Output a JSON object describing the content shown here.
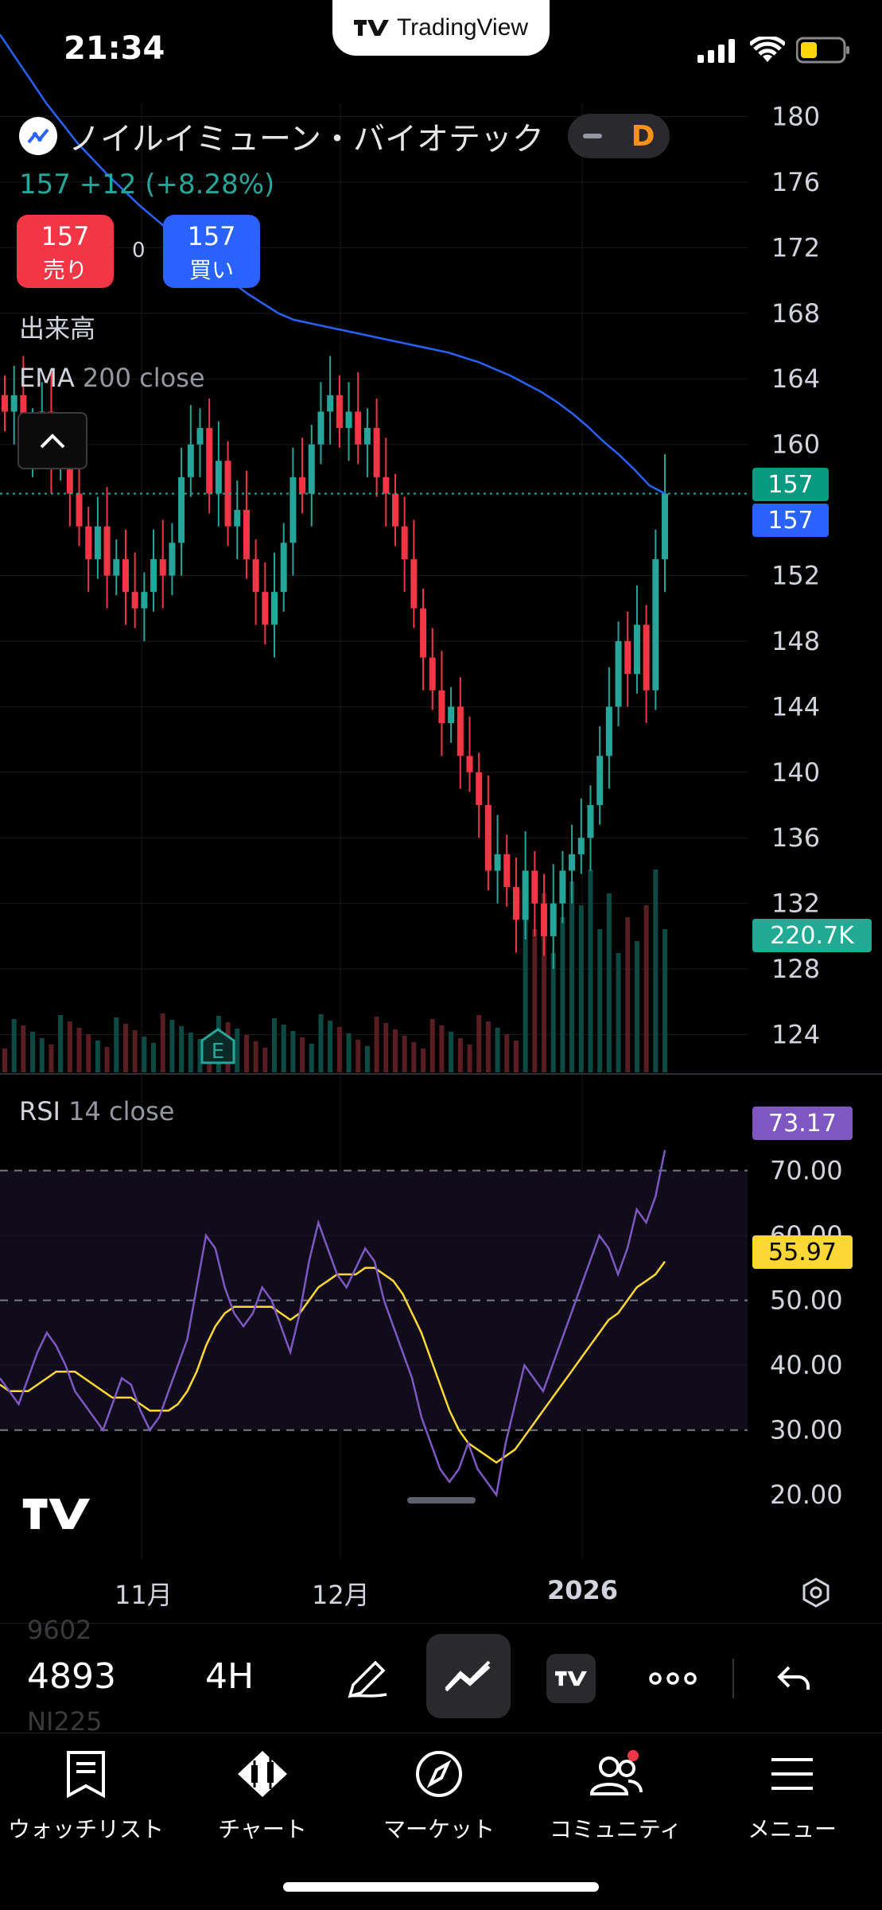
{
  "status_bar": {
    "time": "21:34",
    "app_pill": "TradingView"
  },
  "symbol": {
    "title": "ノイルイミューン・バイオテック",
    "interval_badge": "D",
    "price_change": "157 +12 (+8.28%)"
  },
  "trade": {
    "sell_price": "157",
    "sell_label": "売り",
    "spread": "0",
    "buy_price": "157",
    "buy_label": "買い"
  },
  "indicators": {
    "volume_label": "出来高",
    "ema_name": "EMA",
    "ema_params": "200 close",
    "rsi_name": "RSI",
    "rsi_params": "14 close"
  },
  "colors": {
    "up": "#26a69a",
    "down": "#f23645",
    "ema": "#2962ff",
    "rsi": "#7e57c2",
    "rsi_ma": "#fdd835"
  },
  "chart_data": [
    {
      "type": "candlestick",
      "price_axis_ticks": [
        "180",
        "176",
        "172",
        "168",
        "164",
        "160",
        "152",
        "148",
        "144",
        "140",
        "136",
        "132",
        "128",
        "124"
      ],
      "ylim": [
        121.6,
        180.8
      ],
      "x_labels": [
        "11月",
        "12月",
        "2026"
      ],
      "last_price_badge": "157",
      "bid_badge": "157",
      "volume_badge": "220.7K",
      "candles_close": [
        162,
        163,
        160,
        161,
        162,
        159,
        160,
        157,
        155,
        153,
        155,
        152,
        153,
        151,
        150,
        151,
        153,
        152,
        154,
        158,
        160,
        161,
        157,
        159,
        155,
        156,
        153,
        151,
        149,
        151,
        154,
        158,
        157,
        160,
        162,
        163,
        161,
        162,
        160,
        161,
        158,
        157,
        155,
        153,
        150,
        147,
        145,
        143,
        144,
        141,
        140,
        138,
        134,
        135,
        133,
        131,
        134,
        132,
        130,
        132,
        134,
        135,
        136,
        138,
        141,
        144,
        148,
        146,
        149,
        145,
        153,
        157
      ],
      "ema_series": [
        185,
        183.6,
        182.2,
        180.8,
        179.6,
        178.4,
        177.4,
        176.4,
        175.5,
        174.6,
        173.8,
        173.0,
        172.2,
        171.4,
        170.6,
        169.9,
        169.2,
        168.6,
        168.0,
        167.6,
        167.4,
        167.2,
        167.0,
        166.8,
        166.6,
        166.4,
        166.2,
        166.0,
        165.8,
        165.6,
        165.3,
        165.0,
        164.6,
        164.2,
        163.7,
        163.2,
        162.6,
        161.9,
        161.1,
        160.2,
        159.4,
        158.5,
        157.5,
        157.0
      ],
      "earnings_marker": "E"
    },
    {
      "type": "line",
      "name": "RSI",
      "y_ticks": [
        "70.00",
        "60.00",
        "50.00",
        "40.00",
        "30.00",
        "20.00"
      ],
      "ylim": [
        15,
        80
      ],
      "band": [
        30,
        70
      ],
      "rsi_value_badge": "73.17",
      "ma_value_badge": "55.97",
      "rsi": [
        38,
        36,
        34,
        38,
        42,
        45,
        43,
        40,
        36,
        34,
        32,
        30,
        34,
        38,
        37,
        33,
        30,
        32,
        36,
        40,
        44,
        52,
        60,
        58,
        52,
        48,
        46,
        48,
        52,
        50,
        46,
        42,
        48,
        56,
        62,
        58,
        54,
        52,
        55,
        58,
        56,
        50,
        46,
        42,
        38,
        32,
        28,
        24,
        22,
        24,
        28,
        24,
        22,
        20,
        28,
        34,
        40,
        38,
        36,
        40,
        44,
        48,
        52,
        56,
        60,
        58,
        54,
        58,
        64,
        62,
        66,
        73.17
      ],
      "rsi_ma": [
        37,
        36,
        36,
        36,
        37,
        38,
        39,
        39,
        39,
        38,
        37,
        36,
        35,
        35,
        35,
        34,
        33,
        33,
        33,
        34,
        36,
        39,
        43,
        46,
        48,
        49,
        49,
        49,
        49,
        49,
        48,
        47,
        48,
        50,
        52,
        53,
        54,
        54,
        54,
        55,
        55,
        54,
        53,
        51,
        48,
        45,
        41,
        37,
        33,
        30,
        28,
        27,
        26,
        25,
        26,
        27,
        29,
        31,
        33,
        35,
        37,
        39,
        41,
        43,
        45,
        47,
        48,
        50,
        52,
        53,
        54,
        55.97
      ]
    }
  ],
  "toolbar": {
    "ghost_top": "9602",
    "symbol": "4893",
    "interval": "4H",
    "ghost_bottom": "NI225"
  },
  "bottom_nav": {
    "items": [
      {
        "label": "ウォッチリスト",
        "icon": "watchlist-icon"
      },
      {
        "label": "チャート",
        "icon": "chart-icon"
      },
      {
        "label": "マーケット",
        "icon": "compass-icon"
      },
      {
        "label": "コミュニティ",
        "icon": "community-icon"
      },
      {
        "label": "メニュー",
        "icon": "menu-icon"
      }
    ]
  }
}
